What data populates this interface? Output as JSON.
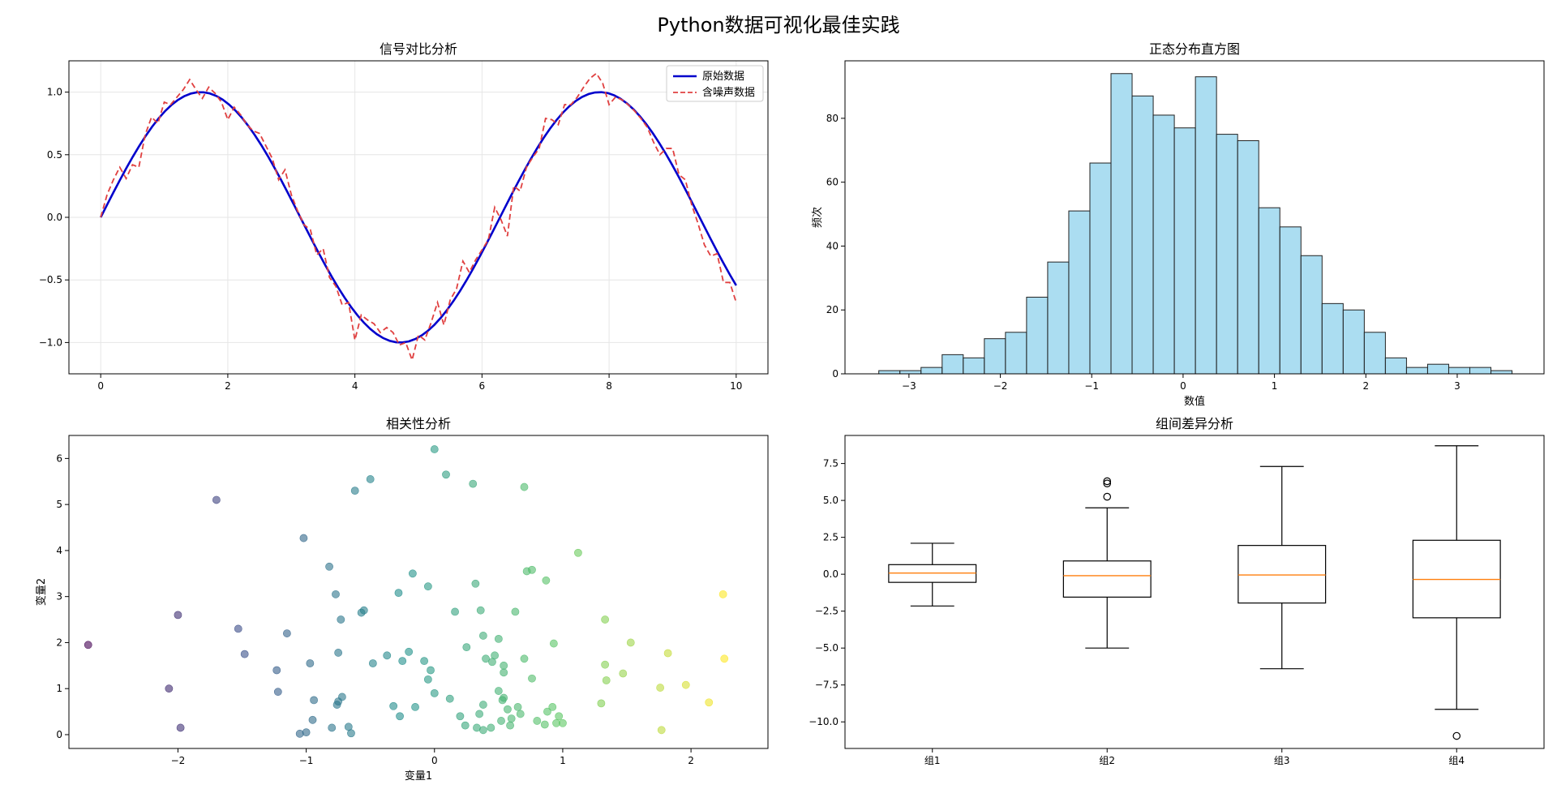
{
  "figure": {
    "suptitle": "Python数据可视化最佳实践"
  },
  "chart_data": [
    {
      "id": "line",
      "type": "line",
      "title": "信号对比分析",
      "xlabel": "",
      "ylabel": "",
      "xlim": [
        -0.5,
        10.5
      ],
      "ylim": [
        -1.25,
        1.25
      ],
      "xticks": [
        0,
        2,
        4,
        6,
        8,
        10
      ],
      "yticks": [
        -1.0,
        -0.5,
        0.0,
        0.5,
        1.0
      ],
      "grid": true,
      "legend_position": "upper-right",
      "series": [
        {
          "name": "原始数据",
          "color": "#0000cc",
          "style": "solid",
          "function": "sin",
          "x_range": [
            0,
            10
          ],
          "samples": 100
        },
        {
          "name": "含噪声数据",
          "color": "#e04040",
          "style": "dashed",
          "x": [
            0,
            0.1,
            0.2,
            0.3,
            0.4,
            0.5,
            0.6,
            0.7,
            0.8,
            0.9,
            1.0,
            1.1,
            1.2,
            1.3,
            1.4,
            1.5,
            1.6,
            1.7,
            1.8,
            1.9,
            2.0,
            2.1,
            2.2,
            2.3,
            2.4,
            2.5,
            2.6,
            2.7,
            2.8,
            2.9,
            3.0,
            3.1,
            3.2,
            3.3,
            3.4,
            3.5,
            3.6,
            3.7,
            3.8,
            3.9,
            4.0,
            4.1,
            4.2,
            4.3,
            4.4,
            4.5,
            4.6,
            4.7,
            4.8,
            4.9,
            5.0,
            5.1,
            5.2,
            5.3,
            5.4,
            5.5,
            5.6,
            5.7,
            5.8,
            5.9,
            6.0,
            6.1,
            6.2,
            6.3,
            6.4,
            6.5,
            6.6,
            6.7,
            6.8,
            6.9,
            7.0,
            7.1,
            7.2,
            7.3,
            7.4,
            7.5,
            7.6,
            7.7,
            7.8,
            7.9,
            8.0,
            8.1,
            8.2,
            8.3,
            8.4,
            8.5,
            8.6,
            8.7,
            8.8,
            8.9,
            9.0,
            9.1,
            9.2,
            9.3,
            9.4,
            9.5,
            9.6,
            9.7,
            9.8,
            9.9,
            10.0
          ],
          "y": [
            0.0,
            0.18,
            0.3,
            0.4,
            0.31,
            0.42,
            0.4,
            0.66,
            0.8,
            0.75,
            0.92,
            0.9,
            0.96,
            1.02,
            1.1,
            1.02,
            0.95,
            1.04,
            0.99,
            0.92,
            0.78,
            0.88,
            0.82,
            0.74,
            0.69,
            0.67,
            0.57,
            0.47,
            0.3,
            0.38,
            0.18,
            0.05,
            -0.06,
            -0.1,
            -0.3,
            -0.25,
            -0.48,
            -0.55,
            -0.7,
            -0.68,
            -0.98,
            -0.78,
            -0.82,
            -0.85,
            -0.92,
            -0.88,
            -0.92,
            -1.02,
            -1.0,
            -1.14,
            -0.94,
            -0.98,
            -0.84,
            -0.68,
            -0.86,
            -0.66,
            -0.57,
            -0.35,
            -0.44,
            -0.34,
            -0.26,
            -0.18,
            0.08,
            -0.02,
            -0.15,
            0.25,
            0.21,
            0.4,
            0.48,
            0.55,
            0.79,
            0.78,
            0.74,
            0.9,
            0.9,
            0.96,
            1.04,
            1.11,
            1.15,
            1.07,
            0.9,
            0.96,
            0.94,
            0.9,
            0.85,
            0.79,
            0.72,
            0.6,
            0.5,
            0.55,
            0.55,
            0.34,
            0.3,
            0.1,
            -0.05,
            -0.22,
            -0.31,
            -0.29,
            -0.52,
            -0.52,
            -0.68
          ]
        }
      ]
    },
    {
      "id": "hist",
      "type": "bar",
      "title": "正态分布直方图",
      "xlabel": "数值",
      "ylabel": "频次",
      "xlim": [
        -3.7,
        3.95
      ],
      "ylim": [
        0,
        98
      ],
      "xticks": [
        -3,
        -2,
        -1,
        0,
        1,
        2,
        3
      ],
      "yticks": [
        0,
        20,
        40,
        60,
        80
      ],
      "grid": false,
      "color": "#87ceeb",
      "edgecolor": "#222222",
      "bins_start": -3.33,
      "bin_width": 0.231,
      "values": [
        1,
        1,
        2,
        6,
        5,
        11,
        13,
        24,
        35,
        51,
        66,
        94,
        87,
        81,
        77,
        93,
        75,
        73,
        52,
        46,
        37,
        22,
        20,
        13,
        5,
        2,
        3,
        2,
        2,
        1
      ]
    },
    {
      "id": "scatter",
      "type": "scatter",
      "title": "相关性分析",
      "xlabel": "变量1",
      "ylabel": "变量2",
      "xlim": [
        -2.85,
        2.6
      ],
      "ylim": [
        -0.3,
        6.5
      ],
      "xticks": [
        -2,
        -1,
        0,
        1,
        2
      ],
      "yticks": [
        0,
        1,
        2,
        3,
        4,
        5,
        6
      ],
      "grid": false,
      "colormap": "viridis",
      "points": [
        [
          -2.7,
          1.95
        ],
        [
          -2.07,
          1.0
        ],
        [
          -2.0,
          2.6
        ],
        [
          -1.98,
          0.15
        ],
        [
          -1.7,
          5.1
        ],
        [
          -1.53,
          2.3
        ],
        [
          -1.48,
          1.75
        ],
        [
          -1.23,
          1.4
        ],
        [
          -1.22,
          0.93
        ],
        [
          -1.15,
          2.2
        ],
        [
          -1.05,
          0.02
        ],
        [
          -1.02,
          4.27
        ],
        [
          -1.0,
          0.05
        ],
        [
          -0.97,
          1.55
        ],
        [
          -0.95,
          0.32
        ],
        [
          -0.94,
          0.75
        ],
        [
          -0.82,
          3.65
        ],
        [
          -0.8,
          0.15
        ],
        [
          -0.77,
          3.05
        ],
        [
          -0.76,
          0.65
        ],
        [
          -0.75,
          0.72
        ],
        [
          -0.73,
          2.5
        ],
        [
          -0.72,
          0.82
        ],
        [
          -0.75,
          1.78
        ],
        [
          -0.67,
          0.17
        ],
        [
          -0.65,
          0.03
        ],
        [
          -0.62,
          5.3
        ],
        [
          -0.57,
          2.65
        ],
        [
          -0.55,
          2.7
        ],
        [
          -0.5,
          5.55
        ],
        [
          -0.48,
          1.55
        ],
        [
          -0.37,
          1.72
        ],
        [
          -0.32,
          0.62
        ],
        [
          -0.28,
          3.08
        ],
        [
          -0.27,
          0.4
        ],
        [
          -0.25,
          1.6
        ],
        [
          -0.2,
          1.8
        ],
        [
          -0.17,
          3.5
        ],
        [
          -0.15,
          0.6
        ],
        [
          -0.08,
          1.6
        ],
        [
          -0.05,
          3.22
        ],
        [
          -0.05,
          1.2
        ],
        [
          -0.03,
          1.4
        ],
        [
          0.0,
          6.2
        ],
        [
          0.0,
          0.9
        ],
        [
          0.09,
          5.65
        ],
        [
          0.12,
          0.78
        ],
        [
          0.16,
          2.67
        ],
        [
          0.2,
          0.4
        ],
        [
          0.24,
          0.2
        ],
        [
          0.25,
          1.9
        ],
        [
          0.3,
          5.45
        ],
        [
          0.32,
          3.28
        ],
        [
          0.33,
          0.15
        ],
        [
          0.35,
          0.45
        ],
        [
          0.36,
          2.7
        ],
        [
          0.38,
          0.1
        ],
        [
          0.38,
          0.65
        ],
        [
          0.38,
          2.15
        ],
        [
          0.4,
          1.65
        ],
        [
          0.44,
          0.15
        ],
        [
          0.45,
          1.58
        ],
        [
          0.47,
          1.72
        ],
        [
          0.5,
          0.95
        ],
        [
          0.5,
          2.08
        ],
        [
          0.52,
          0.3
        ],
        [
          0.53,
          0.75
        ],
        [
          0.54,
          0.8
        ],
        [
          0.54,
          1.35
        ],
        [
          0.54,
          1.5
        ],
        [
          0.57,
          0.55
        ],
        [
          0.59,
          0.2
        ],
        [
          0.6,
          0.35
        ],
        [
          0.63,
          2.67
        ],
        [
          0.65,
          0.6
        ],
        [
          0.67,
          0.45
        ],
        [
          0.7,
          1.65
        ],
        [
          0.7,
          5.38
        ],
        [
          0.72,
          3.55
        ],
        [
          0.76,
          3.58
        ],
        [
          0.76,
          1.22
        ],
        [
          0.8,
          0.3
        ],
        [
          0.86,
          0.22
        ],
        [
          0.87,
          3.35
        ],
        [
          0.88,
          0.5
        ],
        [
          0.92,
          0.6
        ],
        [
          0.93,
          1.98
        ],
        [
          0.95,
          0.25
        ],
        [
          0.97,
          0.4
        ],
        [
          1.0,
          0.25
        ],
        [
          1.12,
          3.95
        ],
        [
          1.3,
          0.68
        ],
        [
          1.33,
          2.5
        ],
        [
          1.33,
          1.52
        ],
        [
          1.34,
          1.18
        ],
        [
          1.47,
          1.33
        ],
        [
          1.53,
          2.0
        ],
        [
          1.76,
          1.02
        ],
        [
          1.77,
          0.1
        ],
        [
          1.82,
          1.77
        ],
        [
          1.96,
          1.08
        ],
        [
          2.14,
          0.7
        ],
        [
          2.25,
          3.05
        ],
        [
          2.26,
          1.65
        ]
      ]
    },
    {
      "id": "box",
      "type": "box",
      "title": "组间差异分析",
      "xlabel": "",
      "ylabel": "",
      "xlim": [
        0.5,
        4.5
      ],
      "ylim": [
        -11.8,
        9.4
      ],
      "yticks": [
        -10.0,
        -7.5,
        -5.0,
        -2.5,
        0.0,
        2.5,
        5.0,
        7.5
      ],
      "grid": false,
      "median_color": "#ff7f0e",
      "categories": [
        "组1",
        "组2",
        "组3",
        "组4"
      ],
      "stats": [
        {
          "whislo": -2.15,
          "q1": -0.55,
          "med": 0.08,
          "q3": 0.65,
          "whishi": 2.1,
          "fliers": []
        },
        {
          "whislo": -5.0,
          "q1": -1.55,
          "med": -0.1,
          "q3": 0.9,
          "whishi": 4.5,
          "fliers": [
            5.25,
            6.15,
            6.3
          ]
        },
        {
          "whislo": -6.4,
          "q1": -1.95,
          "med": -0.05,
          "q3": 1.95,
          "whishi": 7.3,
          "fliers": []
        },
        {
          "whislo": -9.15,
          "q1": -2.95,
          "med": -0.35,
          "q3": 2.3,
          "whishi": 8.7,
          "fliers": [
            -10.95
          ]
        }
      ]
    }
  ]
}
